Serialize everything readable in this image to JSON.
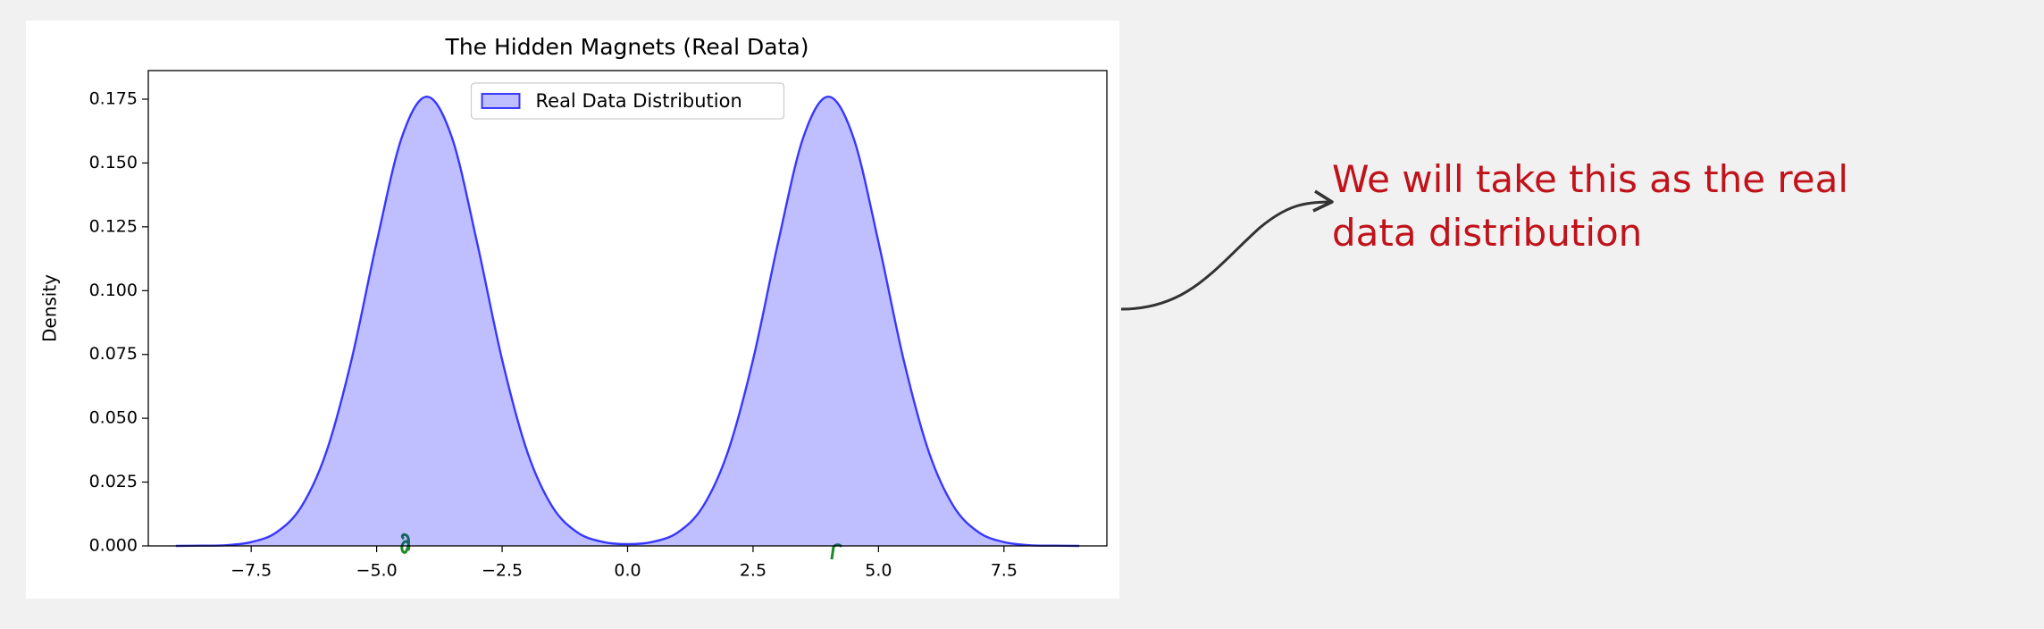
{
  "chart_data": {
    "type": "area",
    "title": "The Hidden Magnets (Real Data)",
    "ylabel": "Density",
    "x": [
      -9,
      -8.5,
      -8,
      -7.5,
      -7,
      -6.5,
      -6,
      -5.5,
      -5,
      -4.5,
      -4,
      -3.5,
      -3,
      -2.5,
      -2,
      -1.5,
      -1,
      -0.5,
      0,
      0.5,
      1,
      1.5,
      2,
      2.5,
      3,
      3.5,
      4,
      4.5,
      5,
      5.5,
      6,
      6.5,
      7,
      7.5,
      8,
      8.5,
      9
    ],
    "series": [
      {
        "name": "Real Data Distribution",
        "color": "#0000ff",
        "values": [
          0.0,
          0.0001,
          0.0003,
          0.0015,
          0.0053,
          0.0154,
          0.037,
          0.073,
          0.119,
          0.16,
          0.176,
          0.16,
          0.119,
          0.073,
          0.037,
          0.0154,
          0.0053,
          0.0016,
          0.0007,
          0.0016,
          0.0053,
          0.0154,
          0.037,
          0.073,
          0.119,
          0.16,
          0.176,
          0.16,
          0.119,
          0.073,
          0.037,
          0.0154,
          0.0053,
          0.0015,
          0.0003,
          0.0001,
          0.0
        ]
      }
    ],
    "xlim": [
      -9.55,
      9.55
    ],
    "ylim": [
      0,
      0.1862
    ],
    "xticks": [
      {
        "value": -7.5,
        "label": "−7.5"
      },
      {
        "value": -5,
        "label": "−5.0"
      },
      {
        "value": -2.5,
        "label": "−2.5"
      },
      {
        "value": 0,
        "label": "0.0"
      },
      2.5,
      {
        "value": 5,
        "label": "5.0"
      },
      7.5
    ],
    "yticks": [
      {
        "value": 0,
        "label": "0.000"
      },
      {
        "value": 0.025,
        "label": "0.025"
      },
      {
        "value": 0.05,
        "label": "0.050"
      },
      {
        "value": 0.075,
        "label": "0.075"
      },
      {
        "value": 0.1,
        "label": "0.100"
      },
      {
        "value": 0.125,
        "label": "0.125"
      },
      {
        "value": 0.15,
        "label": "0.150"
      },
      {
        "value": 0.175,
        "label": "0.175"
      }
    ],
    "legend": "upper center",
    "fill_opacity": 0.25,
    "annotation": [
      "We will take this as the real",
      "data distribution"
    ]
  }
}
